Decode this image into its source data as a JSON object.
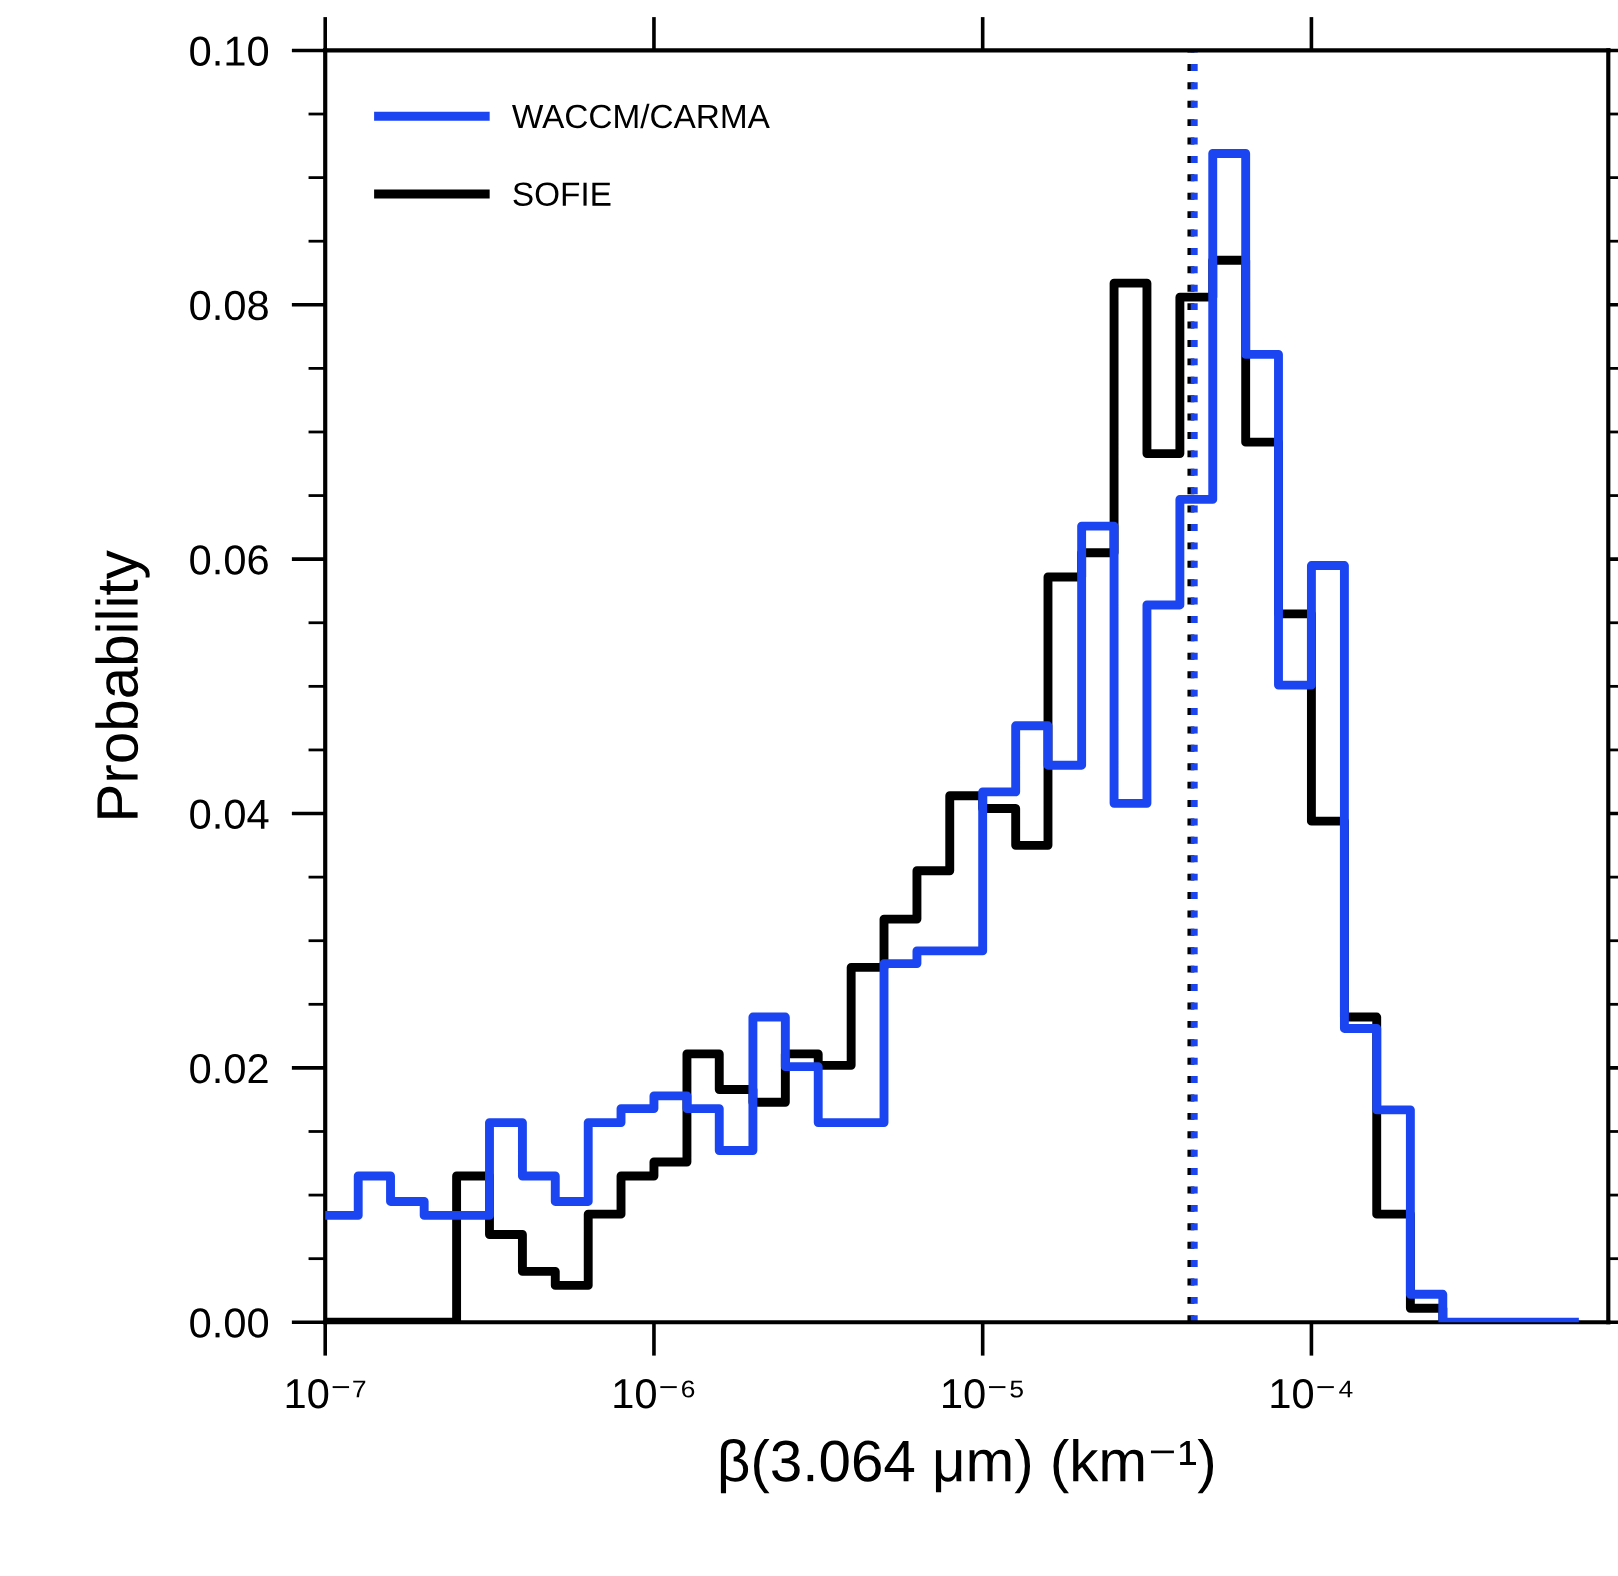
{
  "chart_data": {
    "type": "step",
    "xlabel": "β(3.064 μm) (km⁻¹)",
    "ylabel": "Probability",
    "x": [
      1e-07,
      1.26e-07,
      1.58e-07,
      2e-07,
      2.51e-07,
      3.16e-07,
      3.98e-07,
      5.01e-07,
      6.31e-07,
      7.94e-07,
      1e-06,
      1.26e-06,
      1.58e-06,
      2e-06,
      2.51e-06,
      3.16e-06,
      3.98e-06,
      5.01e-06,
      6.31e-06,
      7.94e-06,
      1e-05,
      1.26e-05,
      1.58e-05,
      2e-05,
      2.51e-05,
      3.16e-05,
      3.98e-05,
      5.01e-05,
      6.31e-05,
      7.94e-05,
      0.0001,
      0.000126,
      0.000158,
      0.0002,
      0.000251,
      0.000316,
      0.000398,
      0.000501,
      0.000631
    ],
    "series": [
      {
        "name": "WACCM/CARMA",
        "color": "#1a45f0",
        "values": [
          0.0084,
          0.0115,
          0.0095,
          0.0084,
          0.0084,
          0.0157,
          0.0115,
          0.0095,
          0.0157,
          0.0168,
          0.0178,
          0.0168,
          0.0135,
          0.024,
          0.0201,
          0.0157,
          0.0157,
          0.0282,
          0.0292,
          0.0292,
          0.0417,
          0.0469,
          0.0438,
          0.0626,
          0.0408,
          0.0564,
          0.0647,
          0.0919,
          0.0761,
          0.0501,
          0.0595,
          0.0231,
          0.0167,
          0.0022,
          0,
          0,
          0,
          0,
          0
        ]
      },
      {
        "name": "SOFIE",
        "color": "#000000",
        "values": [
          0,
          0,
          0,
          0,
          0.0115,
          0.0069,
          0.004,
          0.0029,
          0.0085,
          0.0115,
          0.0126,
          0.0211,
          0.0183,
          0.0173,
          0.0211,
          0.0202,
          0.0279,
          0.0317,
          0.0355,
          0.0414,
          0.0404,
          0.0375,
          0.0586,
          0.0605,
          0.0817,
          0.0683,
          0.0806,
          0.0835,
          0.0692,
          0.0557,
          0.0394,
          0.024,
          0.0085,
          0.0011,
          0,
          null,
          null,
          null,
          null
        ]
      }
    ],
    "ref_lines": [
      {
        "axis": "x",
        "value": 4.3e-05,
        "color": "#000000",
        "line_style": "dotted"
      },
      {
        "axis": "x",
        "value": 4.4e-05,
        "color": "#1a45f0",
        "line_style": "dotted"
      }
    ],
    "log": "x",
    "xlim": [
      1e-07,
      0.0008
    ],
    "xticks": [
      {
        "value": 1e-07,
        "label": "10⁻⁷"
      },
      {
        "value": 1e-06,
        "label": "10⁻⁶"
      },
      {
        "value": 1e-05,
        "label": "10⁻⁵"
      },
      {
        "value": 0.0001,
        "label": "10⁻⁴"
      }
    ],
    "ylim": [
      0,
      0.1
    ],
    "yticks": [
      {
        "value": 0,
        "label": "0.00"
      },
      {
        "value": 0.02,
        "label": "0.02"
      },
      {
        "value": 0.04,
        "label": "0.04"
      },
      {
        "value": 0.06,
        "label": "0.06"
      },
      {
        "value": 0.08,
        "label": "0.08"
      },
      {
        "value": 0.1,
        "label": "0.10"
      }
    ],
    "legend": "top left",
    "grid": false
  }
}
